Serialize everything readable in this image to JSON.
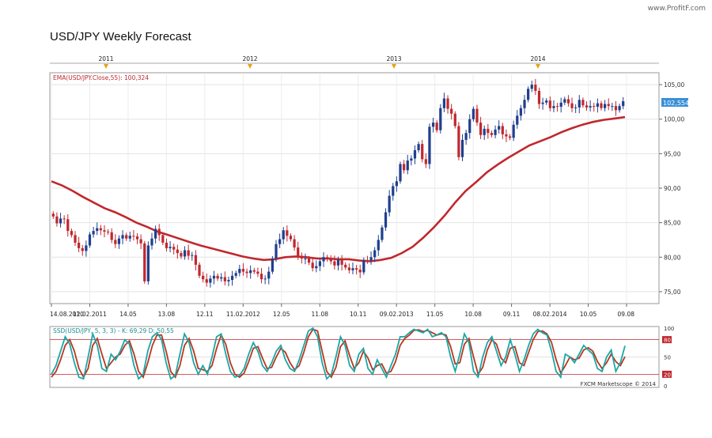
{
  "page": {
    "title": "USD/JPY Weekly Forecast",
    "watermark": "www.ProfitF.com"
  },
  "chart_data": {
    "type": "candlestick",
    "title": "USD/JPY Weekly Forecast",
    "year_markers": [
      "2011",
      "2012",
      "2013",
      "2014"
    ],
    "x_tick_labels": [
      "14.08.2010",
      "12.02.2011",
      "14.05",
      "13.08",
      "12.11",
      "11.02.2012",
      "12.05",
      "11.08",
      "10.11",
      "09.02.2013",
      "11.05",
      "10.08",
      "09.11",
      "08.02.2014",
      "10.05",
      "09.08"
    ],
    "y_tick_labels": [
      "105,00",
      "100,00",
      "95,00",
      "90,00",
      "85,00",
      "80,00",
      "75,00"
    ],
    "ylim": [
      73.5,
      106.5
    ],
    "grid": true,
    "last_price_label": "102,554",
    "last_price": 102.554,
    "indicator_label": "EMA(USD/JPY.Close,55): 100,324",
    "indicator_value": 100.324,
    "indicator_color": "#c0282d",
    "up_color": "#1f3f8f",
    "down_color": "#c0282d",
    "close_series": [
      85.9,
      84.9,
      85.6,
      85.5,
      83.8,
      83.2,
      82.1,
      81.3,
      80.9,
      81.7,
      83.3,
      83.8,
      84.2,
      83.9,
      83.7,
      83.6,
      82.5,
      81.9,
      82.7,
      83.2,
      82.7,
      83.1,
      83.0,
      82.6,
      82.0,
      76.5,
      81.7,
      82.7,
      84.1,
      83.2,
      82.1,
      81.3,
      81.5,
      81.1,
      80.6,
      80.1,
      81.0,
      80.2,
      80.3,
      78.9,
      77.3,
      76.8,
      76.3,
      76.9,
      77.3,
      76.9,
      77.1,
      76.5,
      76.7,
      77.3,
      77.7,
      78.3,
      77.9,
      77.7,
      78.1,
      77.9,
      77.6,
      76.8,
      76.9,
      77.9,
      79.8,
      81.9,
      82.6,
      83.9,
      83.1,
      82.6,
      81.4,
      80.2,
      79.8,
      79.8,
      79.2,
      78.4,
      78.7,
      79.4,
      80.0,
      79.7,
      79.4,
      78.8,
      79.6,
      78.9,
      78.5,
      78.1,
      78.4,
      78.2,
      77.8,
      79.6,
      79.5,
      80.0,
      81.0,
      82.5,
      84.3,
      86.5,
      88.9,
      90.3,
      91.0,
      93.5,
      92.6,
      94.0,
      94.3,
      95.5,
      96.4,
      94.2,
      93.5,
      98.9,
      99.5,
      98.4,
      101.6,
      103.0,
      101.5,
      100.8,
      99.0,
      94.5,
      97.0,
      98.0,
      100.0,
      101.5,
      99.5,
      97.7,
      98.6,
      98.0,
      97.7,
      98.5,
      99.0,
      97.8,
      97.5,
      97.3,
      99.2,
      100.5,
      101.6,
      102.8,
      104.4,
      105.0,
      104.1,
      102.2,
      102.4,
      102.7,
      101.6,
      101.9,
      101.8,
      102.4,
      102.9,
      102.3,
      101.6,
      101.7,
      102.8,
      102.0,
      101.7,
      101.9,
      101.8,
      102.3,
      101.6,
      102.2,
      101.9,
      101.9,
      101.3,
      101.9,
      102.6
    ],
    "ema_series": [
      91.0,
      90.4,
      89.6,
      88.7,
      87.9,
      87.1,
      86.5,
      85.8,
      85.0,
      84.4,
      83.7,
      83.2,
      82.7,
      82.2,
      81.7,
      81.3,
      80.9,
      80.5,
      80.1,
      79.8,
      79.6,
      79.7,
      80.0,
      80.1,
      80.0,
      79.8,
      79.8,
      79.7,
      79.7,
      79.5,
      79.4,
      79.6,
      79.9,
      80.6,
      81.5,
      82.8,
      84.3,
      86.0,
      87.9,
      89.6,
      90.9,
      92.3,
      93.4,
      94.4,
      95.3,
      96.2,
      96.8,
      97.4,
      98.1,
      98.7,
      99.2,
      99.6,
      99.9,
      100.1,
      100.3
    ],
    "oscillator": {
      "label": "SSD(USD/JPY, 5, 3, 3) - K: 69,29  D: 50,55",
      "k_value": 69.29,
      "d_value": 50.55,
      "k_color": "#1aa7a7",
      "d_color": "#b8361f",
      "y_tick_labels": [
        "100",
        "80",
        "50",
        "20",
        "0"
      ],
      "levels": [
        80,
        20
      ],
      "k_series": [
        20,
        35,
        60,
        85,
        72,
        40,
        15,
        12,
        50,
        90,
        70,
        30,
        25,
        55,
        45,
        60,
        80,
        72,
        35,
        12,
        20,
        60,
        85,
        92,
        80,
        40,
        12,
        18,
        55,
        90,
        75,
        40,
        20,
        35,
        20,
        50,
        85,
        90,
        55,
        25,
        15,
        18,
        30,
        55,
        75,
        60,
        35,
        25,
        40,
        60,
        70,
        45,
        30,
        25,
        45,
        70,
        95,
        100,
        85,
        40,
        12,
        20,
        50,
        85,
        70,
        35,
        25,
        55,
        65,
        30,
        20,
        45,
        30,
        15,
        35,
        55,
        85,
        85,
        92,
        98,
        95,
        92,
        98,
        85,
        88,
        92,
        85,
        50,
        25,
        55,
        90,
        75,
        25,
        15,
        50,
        75,
        85,
        60,
        35,
        50,
        80,
        55,
        25,
        45,
        70,
        90,
        98,
        92,
        88,
        60,
        25,
        15,
        55,
        50,
        40,
        55,
        70,
        62,
        55,
        30,
        25,
        50,
        62,
        25,
        40,
        69.29
      ],
      "d_series": [
        15,
        25,
        45,
        70,
        80,
        60,
        30,
        15,
        30,
        70,
        82,
        55,
        30,
        40,
        50,
        55,
        70,
        78,
        55,
        25,
        15,
        40,
        70,
        88,
        88,
        60,
        25,
        15,
        35,
        70,
        82,
        60,
        30,
        28,
        25,
        35,
        65,
        88,
        72,
        40,
        20,
        15,
        22,
        42,
        65,
        68,
        48,
        30,
        32,
        50,
        65,
        58,
        40,
        28,
        35,
        58,
        85,
        98,
        95,
        60,
        25,
        15,
        32,
        68,
        78,
        52,
        30,
        40,
        60,
        48,
        28,
        35,
        38,
        22,
        25,
        42,
        70,
        82,
        88,
        96,
        97,
        94,
        96,
        92,
        88,
        90,
        88,
        68,
        38,
        40,
        72,
        82,
        50,
        20,
        32,
        62,
        80,
        72,
        48,
        40,
        65,
        68,
        40,
        35,
        58,
        80,
        94,
        95,
        90,
        75,
        45,
        22,
        35,
        50,
        45,
        48,
        62,
        66,
        60,
        42,
        30,
        40,
        55,
        42,
        35,
        50.55
      ]
    },
    "footer": "FXCM Marketscope © 2014"
  }
}
